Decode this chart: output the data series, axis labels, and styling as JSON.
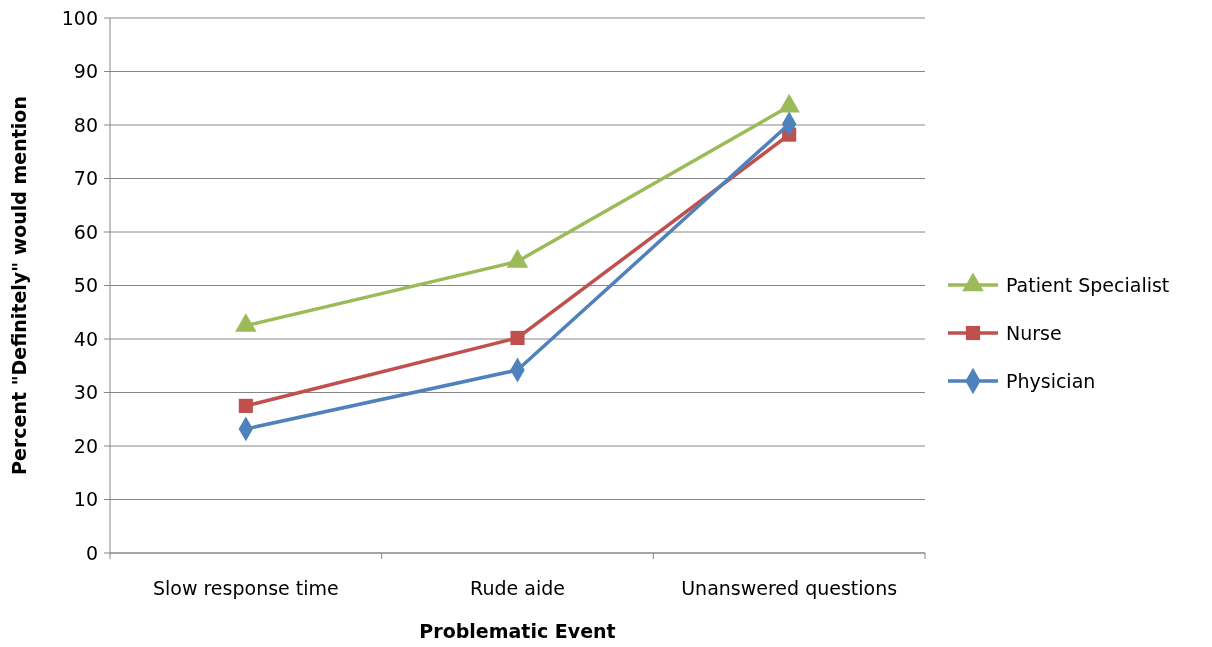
{
  "chart_data": {
    "type": "line",
    "xlabel": "Problematic Event",
    "ylabel": "Percent \"Definitely\" would mention",
    "categories": [
      "Slow response time",
      "Rude aide",
      "Unanswered questions"
    ],
    "series": [
      {
        "name": "Patient Specialist",
        "color": "#9bbb59",
        "values": [
          42.5,
          54.5,
          83.5
        ],
        "marker": "triangle"
      },
      {
        "name": "Nurse",
        "color": "#c0504d",
        "values": [
          27.5,
          40.2,
          78.2
        ],
        "marker": "square"
      },
      {
        "name": "Physician",
        "color": "#4f81bd",
        "values": [
          23.2,
          34.2,
          80.2
        ],
        "marker": "diamond"
      }
    ],
    "ylim": [
      0,
      100
    ],
    "yticks": [
      0,
      10,
      20,
      30,
      40,
      50,
      60,
      70,
      80,
      90,
      100
    ],
    "grid": "y",
    "legend": "right"
  }
}
